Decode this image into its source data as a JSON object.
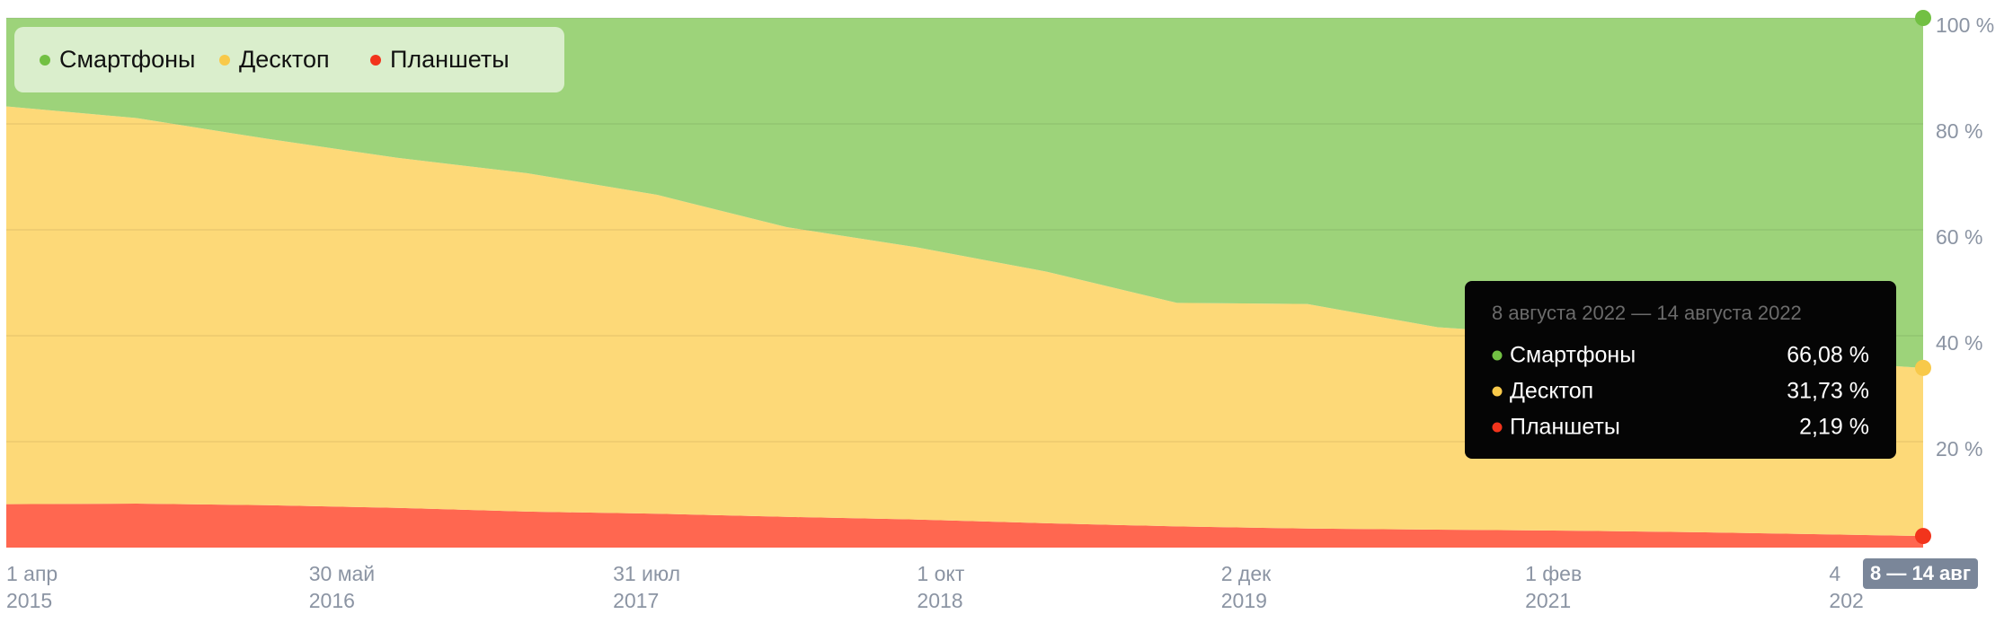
{
  "chart_data": {
    "type": "stacked-area",
    "x": [
      "2015-04-01",
      "2015-10-01",
      "2016-04-01",
      "2016-10-01",
      "2017-04-01",
      "2017-10-01",
      "2018-04-01",
      "2018-10-01",
      "2019-04-01",
      "2019-10-01",
      "2020-04-01",
      "2020-10-01",
      "2021-04-01",
      "2021-10-01",
      "2022-04-01",
      "2022-08-14"
    ],
    "series": [
      {
        "name": "Смартфоны",
        "color": "#9dd37a",
        "dot_color": "#72c043",
        "values": [
          16.7,
          18.9,
          22.8,
          26.4,
          29.3,
          33.4,
          39.5,
          43.3,
          47.9,
          53.8,
          54.0,
          58.4,
          60.0,
          63.2,
          64.9,
          66.08
        ]
      },
      {
        "name": "Десктоп",
        "color": "#fdd978",
        "dot_color": "#f8c94a",
        "values": [
          75.1,
          72.8,
          69.2,
          66.1,
          63.9,
          60.2,
          54.7,
          51.4,
          47.5,
          42.2,
          42.4,
          38.2,
          36.8,
          33.9,
          32.6,
          31.73
        ]
      },
      {
        "name": "Планшеты",
        "color": "#ff6750",
        "dot_color": "#f2341c",
        "values": [
          8.2,
          8.3,
          8.0,
          7.5,
          6.8,
          6.4,
          5.8,
          5.3,
          4.6,
          4.0,
          3.6,
          3.4,
          3.2,
          2.9,
          2.5,
          2.19
        ]
      }
    ],
    "xlim": [
      "2015-04-01",
      "2022-08-14"
    ],
    "xticks": [
      {
        "value": "2015-04-01",
        "label": [
          "1 апр",
          "2015"
        ]
      },
      {
        "value": "2016-05-30",
        "label": [
          "30 май",
          "2016"
        ]
      },
      {
        "value": "2017-07-31",
        "label": [
          "31 июл",
          "2017"
        ]
      },
      {
        "value": "2018-10-01",
        "label": [
          "1 окт",
          "2018"
        ]
      },
      {
        "value": "2019-12-02",
        "label": [
          "2 дек",
          "2019"
        ]
      },
      {
        "value": "2021-02-01",
        "label": [
          "1 фев",
          "2021"
        ]
      },
      {
        "value": "2022-04-04",
        "label": [
          "4",
          "202"
        ]
      }
    ],
    "ylim": [
      0,
      100
    ],
    "yticks": [
      {
        "value": 20,
        "label": "20 %"
      },
      {
        "value": 40,
        "label": "40 %"
      },
      {
        "value": 60,
        "label": "60 %"
      },
      {
        "value": 80,
        "label": "80 %"
      },
      {
        "value": 100,
        "label": "100 %"
      }
    ],
    "grid": true,
    "legend": "top-left",
    "tooltip": {
      "title": "8 августа 2022 — 14 августа 2022",
      "value_labels": [
        "66,08 %",
        "31,73 %",
        "2,19 %"
      ]
    },
    "range_label": "8 — 14 авг"
  }
}
